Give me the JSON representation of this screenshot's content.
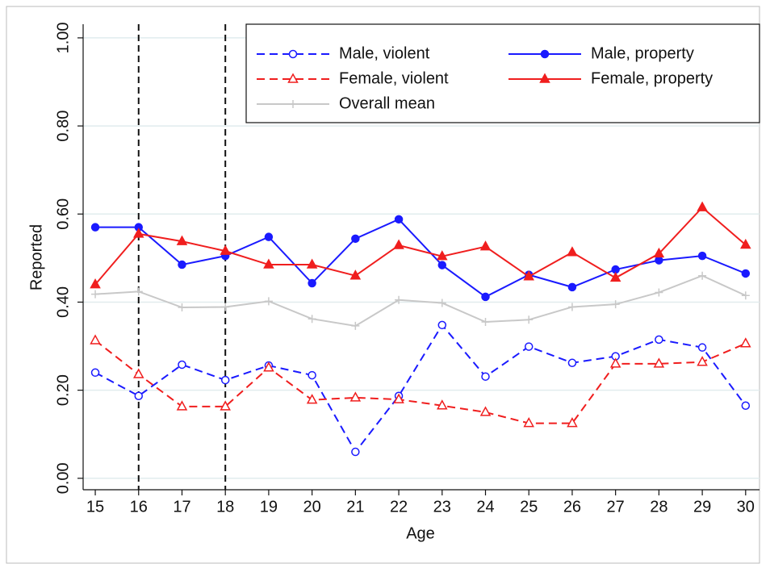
{
  "chart_data": {
    "type": "line",
    "x_label": "Age",
    "y_label": "Reported",
    "xlim": [
      14.72,
      30.32
    ],
    "ylim": [
      -0.026,
      1.031
    ],
    "xticks": [
      15,
      16,
      17,
      18,
      19,
      20,
      21,
      22,
      23,
      24,
      25,
      26,
      27,
      28,
      29,
      30
    ],
    "yticks": [
      {
        "value": 0,
        "label": "0.00"
      },
      {
        "value": 0.2,
        "label": "0.20"
      },
      {
        "value": 0.4,
        "label": "0.40"
      },
      {
        "value": 0.6,
        "label": "0.60"
      },
      {
        "value": 0.8,
        "label": "0.80"
      },
      {
        "value": 1,
        "label": "1.00"
      }
    ],
    "grid": true,
    "legend": "top-right",
    "reference_lines": [
      16,
      18
    ],
    "x": [
      15,
      16,
      17,
      18,
      19,
      20,
      21,
      22,
      23,
      24,
      25,
      26,
      27,
      28,
      29,
      30
    ],
    "series": [
      {
        "name": "Male, violent",
        "color": "#1a1aff",
        "dash": true,
        "marker": "circle-open",
        "values": [
          0.24,
          0.187,
          0.258,
          0.223,
          0.256,
          0.234,
          0.06,
          0.187,
          0.348,
          0.231,
          0.299,
          0.262,
          0.277,
          0.315,
          0.297,
          0.165
        ]
      },
      {
        "name": "Male, property",
        "color": "#1a1aff",
        "dash": false,
        "marker": "circle",
        "values": [
          0.57,
          0.57,
          0.485,
          0.505,
          0.548,
          0.443,
          0.544,
          0.588,
          0.484,
          0.412,
          0.462,
          0.434,
          0.474,
          0.495,
          0.505,
          0.465
        ]
      },
      {
        "name": "Female, violent",
        "color": "#f01e1e",
        "dash": true,
        "marker": "triangle-open",
        "values": [
          0.313,
          0.236,
          0.163,
          0.163,
          0.251,
          0.178,
          0.183,
          0.179,
          0.165,
          0.15,
          0.125,
          0.125,
          0.26,
          0.26,
          0.264,
          0.306
        ]
      },
      {
        "name": "Female, property",
        "color": "#f01e1e",
        "dash": false,
        "marker": "triangle",
        "values": [
          0.44,
          0.555,
          0.538,
          0.516,
          0.485,
          0.485,
          0.46,
          0.529,
          0.504,
          0.526,
          0.458,
          0.513,
          0.455,
          0.51,
          0.615,
          0.53
        ]
      },
      {
        "name": "Overall mean",
        "color": "#c8c8c8",
        "dash": false,
        "marker": "plus",
        "values": [
          0.418,
          0.424,
          0.388,
          0.389,
          0.402,
          0.362,
          0.346,
          0.405,
          0.398,
          0.355,
          0.36,
          0.389,
          0.395,
          0.422,
          0.46,
          0.415
        ]
      }
    ]
  }
}
